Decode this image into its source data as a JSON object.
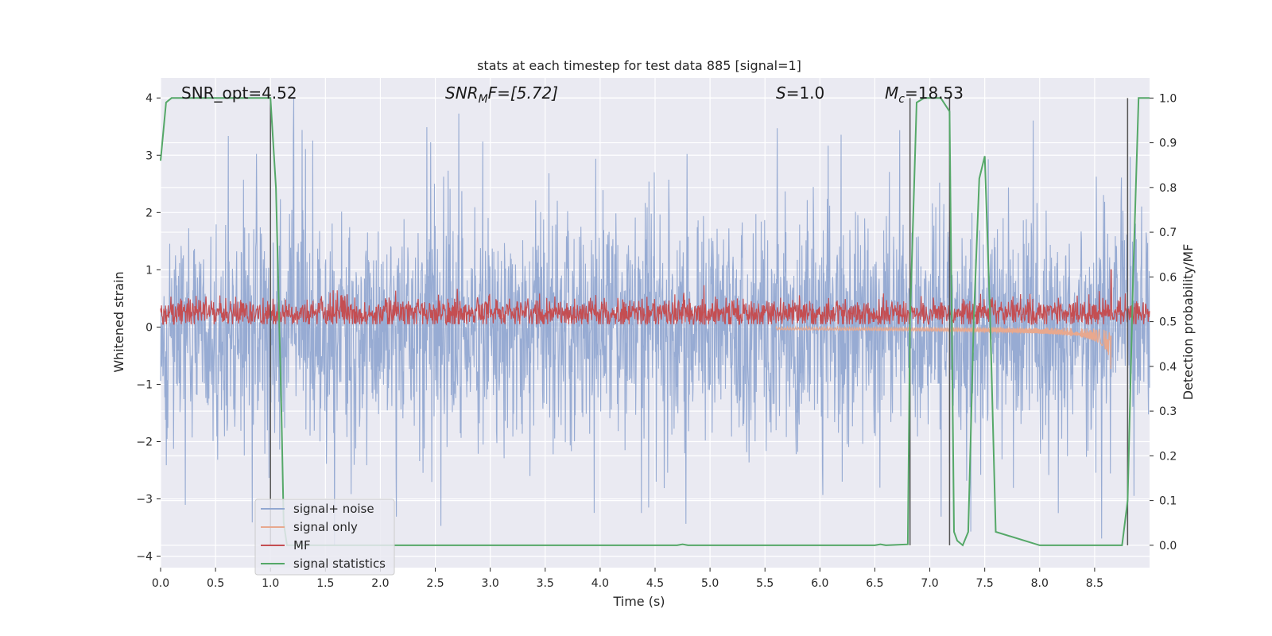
{
  "chart_data": {
    "type": "line",
    "title": "stats at each timestep for test data 885 [signal=1]",
    "xlabel": "Time (s)",
    "ylabel": "Whitened strain",
    "ylabel_right": "Detection probability/MF",
    "xlim": [
      0.0,
      9.0
    ],
    "ylim": [
      -4.2,
      4.35
    ],
    "ylim_right": [
      -0.05,
      1.045
    ],
    "x_ticks": [
      0.0,
      0.5,
      1.0,
      1.5,
      2.0,
      2.5,
      3.0,
      3.5,
      4.0,
      4.5,
      5.0,
      5.5,
      6.0,
      6.5,
      7.0,
      7.5,
      8.0,
      8.5
    ],
    "x_tick_labels": [
      "0.0",
      "0.5",
      "1.0",
      "1.5",
      "2.0",
      "2.5",
      "3.0",
      "3.5",
      "4.0",
      "4.5",
      "5.0",
      "5.5",
      "6.0",
      "6.5",
      "7.0",
      "7.5",
      "8.0",
      "8.5"
    ],
    "y_ticks": [
      -4,
      -3,
      -2,
      -1,
      0,
      1,
      2,
      3,
      4
    ],
    "y_tick_labels": [
      "−4",
      "−3",
      "−2",
      "−1",
      "0",
      "1",
      "2",
      "3",
      "4"
    ],
    "y_ticks_right": [
      0.0,
      0.1,
      0.2,
      0.3,
      0.4,
      0.5,
      0.6,
      0.7,
      0.8,
      0.9,
      1.0
    ],
    "y_tick_labels_right": [
      "0.0",
      "0.1",
      "0.2",
      "0.3",
      "0.4",
      "0.5",
      "0.6",
      "0.7",
      "0.8",
      "0.9",
      "1.0"
    ],
    "grid": true,
    "legend_placement": "lower-left",
    "annotations": {
      "snr_opt": "SNR_opt=4.52",
      "snr_mf_main": "SNR",
      "snr_mf_sub": "M",
      "snr_mf_rest": "F=[5.72]",
      "s_main": "S",
      "s_rest": "=1.0",
      "mc_main": "M",
      "mc_sub": "c",
      "mc_rest": "=18.53"
    },
    "series": [
      {
        "name": "signal+ noise",
        "color": "#92a8d1",
        "kind": "noise band",
        "approx_envelope_typical": [
          -1.7,
          2.4
        ],
        "approx_extremes": [
          -3.8,
          4.0
        ]
      },
      {
        "name": "signal only",
        "color": "#e8a88e",
        "kind": "chirp",
        "approx_peak_amplitude": 0.8,
        "approx_peak_time": 8.65
      },
      {
        "name": "MF",
        "color": "#c44e52",
        "kind": "noise band",
        "approx_envelope_typical": [
          0.05,
          0.55
        ],
        "approx_peak": 1.0
      },
      {
        "name": "signal statistics",
        "color": "#55a868",
        "axis": "right",
        "x": [
          0.0,
          0.05,
          0.1,
          0.5,
          0.95,
          1.0,
          1.05,
          1.1,
          1.12,
          1.15,
          4.7,
          4.75,
          4.8,
          6.5,
          6.55,
          6.6,
          6.8,
          6.82,
          6.88,
          6.95,
          7.0,
          7.05,
          7.1,
          7.18,
          7.22,
          7.25,
          7.3,
          7.35,
          7.4,
          7.45,
          7.5,
          7.55,
          7.6,
          8.0,
          8.75,
          8.8,
          8.85,
          8.9,
          9.0
        ],
        "y": [
          0.86,
          0.99,
          1.0,
          1.0,
          1.0,
          1.0,
          0.8,
          0.3,
          0.05,
          0.0,
          0.0,
          0.002,
          0.0,
          0.0,
          0.002,
          0.0,
          0.002,
          0.5,
          0.99,
          1.0,
          1.0,
          1.0,
          1.0,
          0.97,
          0.03,
          0.01,
          0.0,
          0.03,
          0.5,
          0.82,
          0.87,
          0.5,
          0.03,
          0.0,
          0.0,
          0.1,
          0.6,
          1.0,
          1.0
        ]
      }
    ],
    "vertical_markers_x": [
      1.0,
      6.82,
      7.18,
      8.8
    ],
    "vertical_marker_color": "#555555"
  }
}
